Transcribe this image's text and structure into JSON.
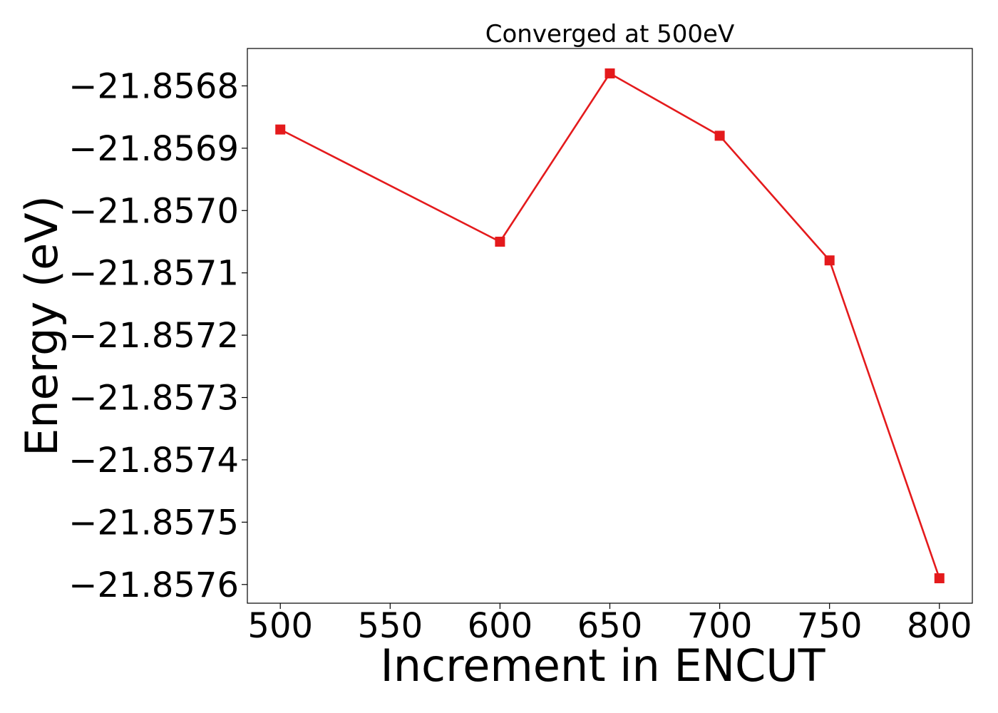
{
  "chart_data": {
    "type": "line",
    "title": "Converged at 500eV",
    "xlabel": "Increment in ENCUT",
    "ylabel": "Energy (eV)",
    "x": [
      500,
      600,
      650,
      700,
      750,
      800
    ],
    "series": [
      {
        "values": [
          -21.85687,
          -21.85705,
          -21.85678,
          -21.85688,
          -21.85708,
          -21.85759
        ],
        "color": "#e41a1c",
        "marker": "square"
      }
    ],
    "x_ticks": [
      500,
      550,
      600,
      650,
      700,
      750,
      800
    ],
    "y_ticks": [
      -21.8568,
      -21.8569,
      -21.857,
      -21.8571,
      -21.8572,
      -21.8573,
      -21.8574,
      -21.8575,
      -21.8576
    ],
    "y_tick_labels": [
      "−21.8568",
      "−21.8569",
      "−21.8570",
      "−21.8571",
      "−21.8572",
      "−21.8573",
      "−21.8574",
      "−21.8575",
      "−21.8576"
    ],
    "xlim": [
      485,
      815
    ],
    "ylim": [
      -21.85763,
      -21.85674
    ],
    "grid": false,
    "legend": false
  }
}
